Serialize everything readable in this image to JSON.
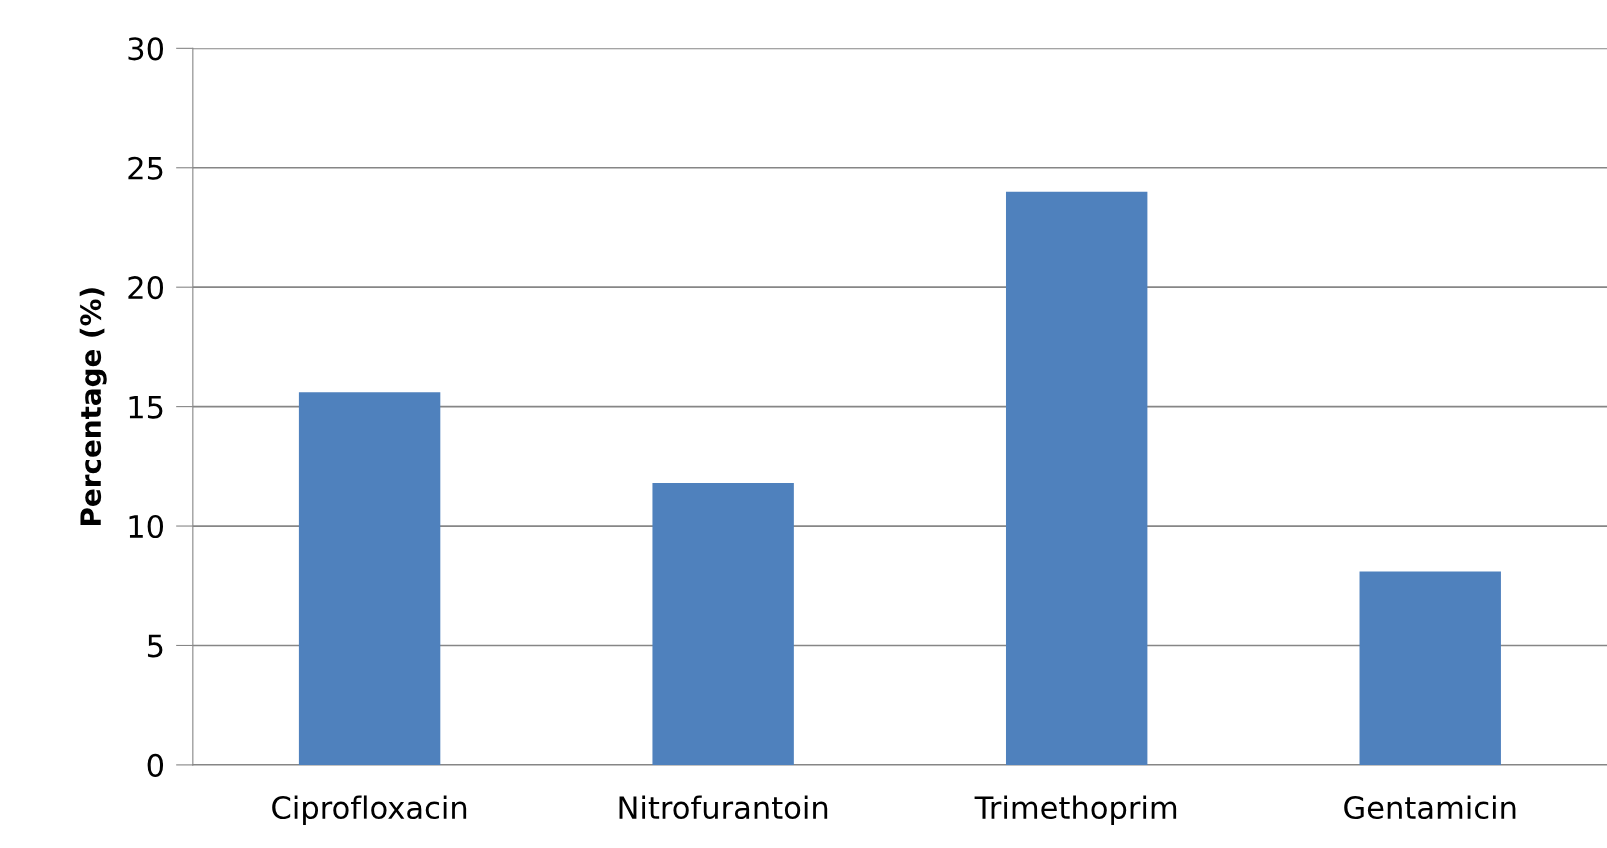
{
  "chart_data": {
    "type": "bar",
    "ylabel": "Percentage (%)",
    "categories": [
      "Ciprofloxacin",
      "Nitrofurantoin",
      "Trimethoprim",
      "Gentamicin"
    ],
    "values": [
      15.6,
      11.8,
      24.0,
      8.1
    ],
    "color": "#4f81bd",
    "ylim": [
      0,
      30
    ],
    "yticks": [
      0,
      5,
      10,
      15,
      20,
      25,
      30
    ],
    "grid": "y"
  }
}
